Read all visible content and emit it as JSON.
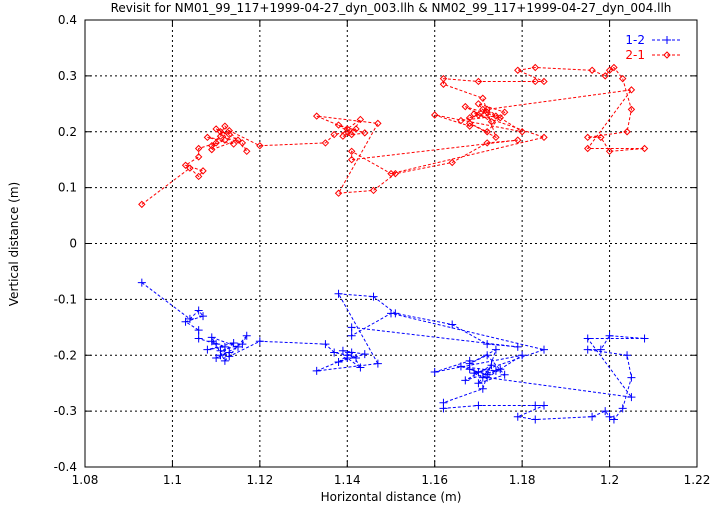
{
  "chart_data": {
    "type": "line",
    "title": "Revisit for NM01_99_117+1999-04-27_dyn_003.llh & NM02_99_117+1999-04-27_dyn_004.llh",
    "xlabel": "Horizontal distance (m)",
    "ylabel": "Vertical distance (m)",
    "xlim": [
      1.08,
      1.22
    ],
    "ylim": [
      -0.4,
      0.4
    ],
    "xticks": [
      "1.08",
      "1.1",
      "1.12",
      "1.14",
      "1.16",
      "1.18",
      "1.2",
      "1.22"
    ],
    "xtick_values": [
      1.08,
      1.1,
      1.12,
      1.14,
      1.16,
      1.18,
      1.2,
      1.22
    ],
    "yticks": [
      "0.4",
      "0.3",
      "0.2",
      "0.1",
      "0",
      "-0.1",
      "-0.2",
      "-0.3",
      "-0.4"
    ],
    "ytick_values": [
      0.4,
      0.3,
      0.2,
      0.1,
      0,
      -0.1,
      -0.2,
      -0.3,
      -0.4
    ],
    "grid": true,
    "legend_position": "top-right",
    "series": [
      {
        "name": "1-2",
        "color": "#0000ff",
        "marker": "plus",
        "x": [
          1.093,
          1.104,
          1.106,
          1.107,
          1.103,
          1.106,
          1.106,
          1.11,
          1.109,
          1.112,
          1.108,
          1.114,
          1.111,
          1.113,
          1.11,
          1.115,
          1.109,
          1.112,
          1.117,
          1.116,
          1.111,
          1.113,
          1.12,
          1.135,
          1.137,
          1.14,
          1.142,
          1.139,
          1.144,
          1.138,
          1.141,
          1.143,
          1.14,
          1.133,
          1.147,
          1.138,
          1.146,
          1.151,
          1.164,
          1.172,
          1.179,
          1.141,
          1.141,
          1.15,
          1.185,
          1.17,
          1.168,
          1.172,
          1.166,
          1.174,
          1.171,
          1.169,
          1.175,
          1.167,
          1.173,
          1.17,
          1.176,
          1.172,
          1.168,
          1.174,
          1.171,
          1.162,
          1.162,
          1.17,
          1.183,
          1.185,
          1.179,
          1.183,
          1.196,
          1.199,
          1.2,
          1.201,
          1.203,
          1.205,
          1.204,
          1.195,
          1.198,
          1.2,
          1.208,
          1.195,
          1.205,
          1.172,
          1.18,
          1.16,
          1.168
        ],
        "y": [
          -0.07,
          -0.135,
          -0.12,
          -0.13,
          -0.14,
          -0.155,
          -0.17,
          -0.18,
          -0.175,
          -0.185,
          -0.19,
          -0.178,
          -0.2,
          -0.195,
          -0.205,
          -0.185,
          -0.168,
          -0.21,
          -0.165,
          -0.18,
          -0.192,
          -0.202,
          -0.175,
          -0.18,
          -0.195,
          -0.2,
          -0.205,
          -0.192,
          -0.198,
          -0.212,
          -0.195,
          -0.222,
          -0.205,
          -0.228,
          -0.215,
          -0.09,
          -0.095,
          -0.125,
          -0.145,
          -0.18,
          -0.185,
          -0.15,
          -0.165,
          -0.125,
          -0.19,
          -0.23,
          -0.225,
          -0.235,
          -0.22,
          -0.228,
          -0.24,
          -0.232,
          -0.225,
          -0.245,
          -0.218,
          -0.25,
          -0.235,
          -0.2,
          -0.215,
          -0.19,
          -0.26,
          -0.285,
          -0.295,
          -0.29,
          -0.29,
          -0.29,
          -0.31,
          -0.315,
          -0.31,
          -0.3,
          -0.31,
          -0.315,
          -0.295,
          -0.24,
          -0.2,
          -0.19,
          -0.19,
          -0.165,
          -0.17,
          -0.17,
          -0.275,
          -0.24,
          -0.2,
          -0.23,
          -0.21
        ]
      },
      {
        "name": "2-1",
        "color": "#ff0000",
        "marker": "diamond",
        "x": [
          1.093,
          1.104,
          1.106,
          1.107,
          1.103,
          1.106,
          1.106,
          1.11,
          1.109,
          1.112,
          1.108,
          1.114,
          1.111,
          1.113,
          1.11,
          1.115,
          1.109,
          1.112,
          1.117,
          1.116,
          1.111,
          1.113,
          1.12,
          1.135,
          1.137,
          1.14,
          1.142,
          1.139,
          1.144,
          1.138,
          1.141,
          1.143,
          1.14,
          1.133,
          1.147,
          1.138,
          1.146,
          1.151,
          1.164,
          1.172,
          1.179,
          1.141,
          1.141,
          1.15,
          1.185,
          1.17,
          1.168,
          1.172,
          1.166,
          1.174,
          1.171,
          1.169,
          1.175,
          1.167,
          1.173,
          1.17,
          1.176,
          1.172,
          1.168,
          1.174,
          1.171,
          1.162,
          1.162,
          1.17,
          1.183,
          1.185,
          1.179,
          1.183,
          1.196,
          1.199,
          1.2,
          1.201,
          1.203,
          1.205,
          1.204,
          1.195,
          1.198,
          1.2,
          1.208,
          1.195,
          1.205,
          1.172,
          1.18,
          1.16,
          1.168
        ],
        "y": [
          0.07,
          0.135,
          0.12,
          0.13,
          0.14,
          0.155,
          0.17,
          0.18,
          0.175,
          0.185,
          0.19,
          0.178,
          0.2,
          0.195,
          0.205,
          0.185,
          0.168,
          0.21,
          0.165,
          0.18,
          0.192,
          0.202,
          0.175,
          0.18,
          0.195,
          0.2,
          0.205,
          0.192,
          0.198,
          0.212,
          0.195,
          0.222,
          0.205,
          0.228,
          0.215,
          0.09,
          0.095,
          0.125,
          0.145,
          0.18,
          0.185,
          0.15,
          0.165,
          0.125,
          0.19,
          0.23,
          0.225,
          0.235,
          0.22,
          0.228,
          0.24,
          0.232,
          0.225,
          0.245,
          0.218,
          0.25,
          0.235,
          0.2,
          0.215,
          0.19,
          0.26,
          0.285,
          0.295,
          0.29,
          0.29,
          0.29,
          0.31,
          0.315,
          0.31,
          0.3,
          0.31,
          0.315,
          0.295,
          0.24,
          0.2,
          0.19,
          0.19,
          0.165,
          0.17,
          0.17,
          0.275,
          0.24,
          0.2,
          0.23,
          0.21
        ]
      }
    ]
  }
}
